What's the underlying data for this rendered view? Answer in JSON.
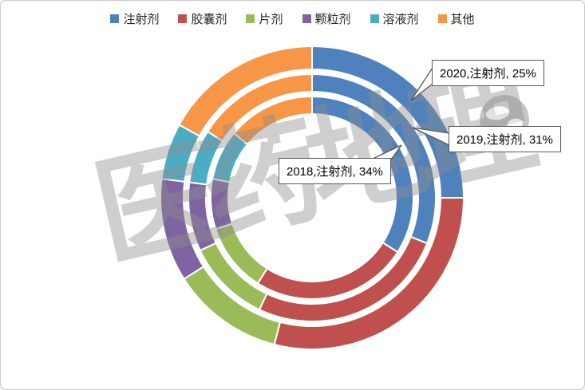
{
  "window": {
    "background": "#ffffff",
    "border_color": "#c9c9c9"
  },
  "legend": {
    "items": [
      {
        "label": "注射剂",
        "color": "#4F81BD"
      },
      {
        "label": "胶囊剂",
        "color": "#C0504D"
      },
      {
        "label": "片剂",
        "color": "#9BBB59"
      },
      {
        "label": "颗粒剂",
        "color": "#8064A2"
      },
      {
        "label": "溶液剂",
        "color": "#4BACC6"
      },
      {
        "label": "其他",
        "color": "#F79646"
      }
    ]
  },
  "chart_data": {
    "type": "donut",
    "subtype": "multi-ring",
    "direction": "clockwise",
    "start_angle_deg": 0,
    "unit": "%",
    "categories": [
      "注射剂",
      "胶囊剂",
      "片剂",
      "颗粒剂",
      "溶液剂",
      "其他"
    ],
    "colors": [
      "#4F81BD",
      "#C0504D",
      "#9BBB59",
      "#8064A2",
      "#4BACC6",
      "#F79646"
    ],
    "rings": [
      {
        "year": "2018",
        "position": "inner",
        "values": [
          34,
          25,
          11,
          8,
          8,
          14
        ]
      },
      {
        "year": "2019",
        "position": "middle",
        "values": [
          31,
          26,
          11,
          9,
          7,
          16
        ]
      },
      {
        "year": "2020",
        "position": "outer",
        "values": [
          25,
          29,
          12,
          11,
          6,
          17
        ]
      }
    ],
    "separator_color": "#ffffff",
    "legend_position": "top"
  },
  "callouts": [
    {
      "text": "2020,注射剂, 25%"
    },
    {
      "text": "2019,注射剂, 31%"
    },
    {
      "text": "2018,注射剂, 34%"
    }
  ],
  "watermark": {
    "text": "医药地理",
    "icon": "globe-icon",
    "color": "#8c8c8c"
  }
}
